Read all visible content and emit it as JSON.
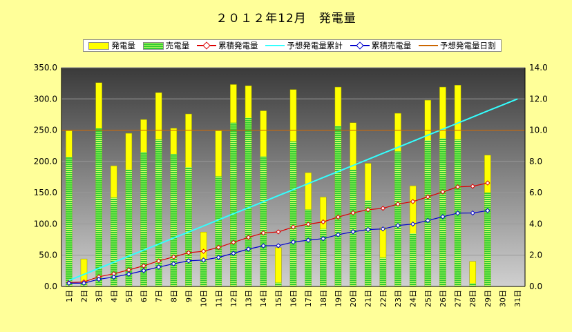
{
  "chart_data": {
    "type": "bar",
    "title": "２０１２年12月　発電量",
    "categories": [
      "1日",
      "2日",
      "3日",
      "4日",
      "5日",
      "6日",
      "7日",
      "8日",
      "9日",
      "10日",
      "11日",
      "12日",
      "13日",
      "14日",
      "15日",
      "16日",
      "17日",
      "18日",
      "19日",
      "20日",
      "21日",
      "22日",
      "23日",
      "24日",
      "25日",
      "26日",
      "27日",
      "28日",
      "29日",
      "30日",
      "31日"
    ],
    "series": [
      {
        "name": "発電量",
        "type": "bar",
        "axis": "left",
        "color": "#ffff00",
        "values": [
          249,
          44,
          326,
          193,
          245,
          267,
          310,
          253,
          276,
          87,
          249,
          323,
          321,
          281,
          62,
          315,
          182,
          143,
          319,
          262,
          197,
          94,
          277,
          161,
          298,
          319,
          322,
          40,
          210,
          null,
          null
        ]
      },
      {
        "name": "売電量",
        "type": "bar",
        "axis": "left",
        "color": "#33cc33",
        "values": [
          207,
          4,
          253,
          142,
          187,
          215,
          235,
          212,
          191,
          42,
          176,
          262,
          270,
          208,
          6,
          232,
          123,
          92,
          257,
          187,
          138,
          46,
          216,
          85,
          234,
          237,
          235,
          5,
          150,
          null,
          null
        ]
      },
      {
        "name": "累積発電量",
        "type": "line",
        "axis": "right",
        "color": "#dd0000",
        "values": [
          0.25,
          0.29,
          0.62,
          0.81,
          1.06,
          1.32,
          1.63,
          1.89,
          2.16,
          2.25,
          2.5,
          2.82,
          3.14,
          3.42,
          3.49,
          3.8,
          3.98,
          4.13,
          4.44,
          4.71,
          4.91,
          5.0,
          5.27,
          5.43,
          5.73,
          6.05,
          6.37,
          6.41,
          6.62,
          null,
          null
        ]
      },
      {
        "name": "予想発電量累計",
        "type": "line",
        "axis": "right",
        "color": "#33ffff",
        "values": [
          0.39,
          0.77,
          1.16,
          1.55,
          1.94,
          2.32,
          2.71,
          3.1,
          3.48,
          3.87,
          4.26,
          4.65,
          5.03,
          5.42,
          5.81,
          6.19,
          6.58,
          6.97,
          7.35,
          7.74,
          8.13,
          8.52,
          8.9,
          9.29,
          9.68,
          10.06,
          10.45,
          10.84,
          11.23,
          11.61,
          12.0
        ]
      },
      {
        "name": "累積売電量",
        "type": "line",
        "axis": "right",
        "color": "#0000cc",
        "values": [
          0.21,
          0.21,
          0.46,
          0.6,
          0.79,
          1.01,
          1.24,
          1.45,
          1.64,
          1.69,
          1.86,
          2.12,
          2.39,
          2.6,
          2.61,
          2.84,
          2.96,
          3.06,
          3.31,
          3.5,
          3.64,
          3.68,
          3.9,
          3.99,
          4.22,
          4.46,
          4.69,
          4.7,
          4.85,
          null,
          null
        ]
      },
      {
        "name": "予想発電量日割",
        "type": "line",
        "axis": "left",
        "color": "#cc6600",
        "values": [
          250,
          250,
          250,
          250,
          250,
          250,
          250,
          250,
          250,
          250,
          250,
          250,
          250,
          250,
          250,
          250,
          250,
          250,
          250,
          250,
          250,
          250,
          250,
          250,
          250,
          250,
          250,
          250,
          250,
          250,
          250
        ]
      }
    ],
    "y_left": {
      "min": 0,
      "max": 350,
      "ticks": [
        "0.0",
        "50.0",
        "100.0",
        "150.0",
        "200.0",
        "250.0",
        "300.0",
        "350.0"
      ]
    },
    "y_right": {
      "min": 0,
      "max": 14,
      "ticks": [
        "0.0",
        "2.0",
        "4.0",
        "6.0",
        "8.0",
        "10.0",
        "12.0",
        "14.0"
      ]
    },
    "legend_position": "top",
    "grid": true
  }
}
